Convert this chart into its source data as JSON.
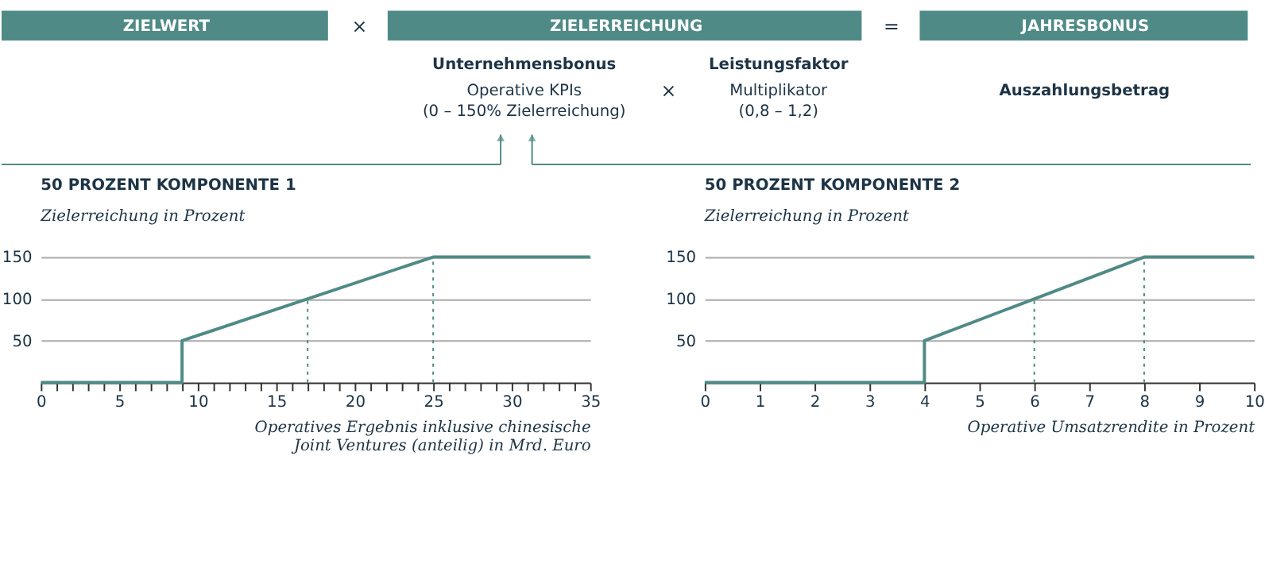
{
  "chart_data": [
    {
      "type": "other",
      "color": "#4f8a86",
      "annotations": [
        "ZIELWERT",
        "×",
        "ZIELERREICHUNG",
        "=",
        "JAHRESBONUS",
        "Unternehmensbonus",
        "Operative KPIs",
        "(0 – 150% Zielerreichung)",
        "×",
        "Leistungsfaktor",
        "Multiplikator",
        "(0,8 – 1,2)",
        "Auszahlungsbetrag"
      ]
    },
    {
      "type": "line",
      "title": "50 PROZENT KOMPONENTE 1",
      "subtitle": "Zielerreichung in Prozent",
      "xlabel": "Operatives Ergebnis inklusive chinesische\nJoint Ventures (anteilig) in Mrd. Euro",
      "xlim": [
        0,
        35
      ],
      "ylim": [
        0,
        150
      ],
      "yticks": [
        50,
        100,
        150
      ],
      "grid": "y",
      "marker": "none",
      "xticks": [
        0,
        {
          "value": 1,
          "label": null
        },
        {
          "value": 2,
          "label": null
        },
        {
          "value": 3,
          "label": null
        },
        {
          "value": 4,
          "label": null
        },
        5,
        {
          "value": 6,
          "label": null
        },
        {
          "value": 7,
          "label": null
        },
        {
          "value": 8,
          "label": null
        },
        {
          "value": 9,
          "label": null
        },
        10,
        {
          "value": 11,
          "label": null
        },
        {
          "value": 12,
          "label": null
        },
        {
          "value": 13,
          "label": null
        },
        {
          "value": 14,
          "label": null
        },
        15,
        {
          "value": 16,
          "label": null
        },
        {
          "value": 17,
          "label": null
        },
        {
          "value": 18,
          "label": null
        },
        {
          "value": 19,
          "label": null
        },
        20,
        {
          "value": 21,
          "label": null
        },
        {
          "value": 22,
          "label": null
        },
        {
          "value": 23,
          "label": null
        },
        {
          "value": 24,
          "label": null
        },
        25,
        {
          "value": 26,
          "label": null
        },
        {
          "value": 27,
          "label": null
        },
        {
          "value": 28,
          "label": null
        },
        {
          "value": 29,
          "label": null
        },
        30,
        {
          "value": 31,
          "label": null
        },
        {
          "value": 32,
          "label": null
        },
        {
          "value": 33,
          "label": null
        },
        {
          "value": 34,
          "label": null
        },
        35
      ],
      "series": [
        {
          "color": "#4f8a86",
          "x": [
            0,
            9,
            9,
            25,
            35
          ],
          "values": [
            0,
            0,
            50,
            150,
            150
          ],
          "line_style": "solid"
        },
        {
          "color": "#4f8a86",
          "x": [
            17,
            17
          ],
          "values": [
            0,
            100
          ],
          "line_style": "dotted"
        },
        {
          "color": "#4f8a86",
          "x": [
            25,
            25
          ],
          "values": [
            0,
            150
          ],
          "line_style": "dotted"
        }
      ]
    },
    {
      "type": "line",
      "title": "50 PROZENT KOMPONENTE 2",
      "subtitle": "Zielerreichung in Prozent",
      "xlabel": "Operative Umsatzrendite in Prozent",
      "xlim": [
        0,
        10
      ],
      "ylim": [
        0,
        150
      ],
      "yticks": [
        50,
        100,
        150
      ],
      "grid": "y",
      "marker": "none",
      "xticks": [
        0,
        1,
        2,
        3,
        4,
        5,
        6,
        7,
        8,
        9,
        10
      ],
      "series": [
        {
          "color": "#4f8a86",
          "x": [
            0,
            4,
            4,
            8,
            10
          ],
          "values": [
            0,
            0,
            50,
            150,
            150
          ],
          "line_style": "solid"
        },
        {
          "color": "#4f8a86",
          "x": [
            6,
            6
          ],
          "values": [
            0,
            100
          ],
          "line_style": "dotted"
        },
        {
          "color": "#4f8a86",
          "x": [
            8,
            8
          ],
          "values": [
            0,
            150
          ],
          "line_style": "dotted"
        }
      ]
    }
  ]
}
